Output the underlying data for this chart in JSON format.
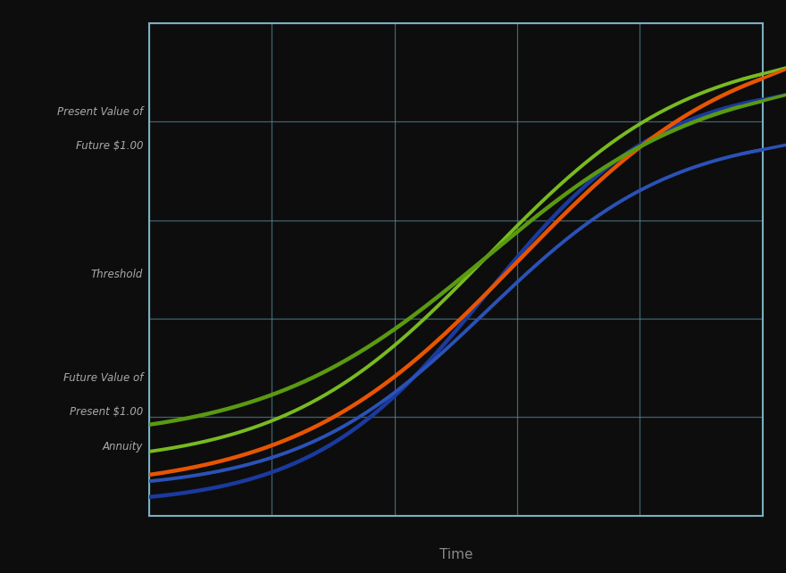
{
  "background_color": "#0d0d0d",
  "grid_color": "#5a8a9a",
  "plot_bg": "#0d0d0d",
  "spine_color": "#7ab0c0",
  "xlabel": "Time",
  "xlabel_color": "#888888",
  "xlabel_fontsize": 11,
  "label_pv1": "Present Value of",
  "label_pv2": "Future $1.00",
  "label_threshold": "Threshold",
  "label_fv1": "Future Value of",
  "label_fv2": "Present $1.00",
  "label_fv3": "Annuity",
  "text_color": "#aaaaaa",
  "blue_dark": "#1a3a9e",
  "blue_mid": "#2a52b8",
  "green_dark": "#5a9a10",
  "green_mid": "#78bb20",
  "orange_color": "#e85500",
  "line_width": 2.8,
  "xlim": [
    0,
    10
  ],
  "ylim": [
    0,
    10
  ],
  "n_grid_x": 5,
  "n_grid_y": 5
}
